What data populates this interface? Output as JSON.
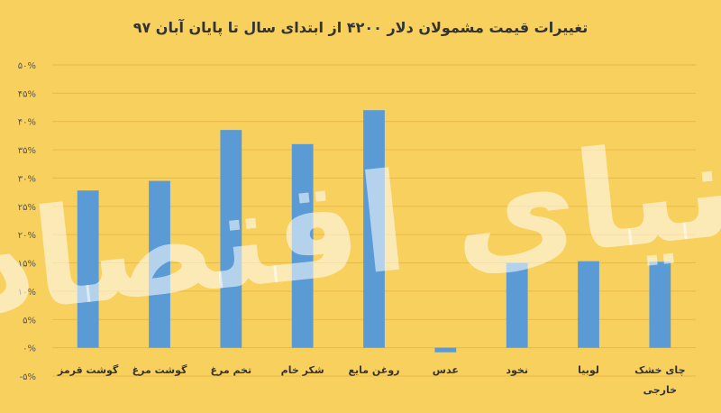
{
  "chart_data": {
    "type": "bar",
    "title": "تغییرات قیمت مشمولان دلار ۴۲۰۰ از ابتدای سال تا پایان آبان ۹۷",
    "xlabel": "",
    "ylabel": "",
    "ylim": [
      -5,
      50
    ],
    "yticks": [
      50,
      45,
      40,
      35,
      30,
      25,
      20,
      15,
      10,
      5,
      0,
      -5
    ],
    "ytick_labels": [
      "۵۰%",
      "۴۵%",
      "۴۰%",
      "۳۵%",
      "۳۰%",
      "۲۵%",
      "۲۰%",
      "۱۵%",
      "۱۰%",
      "۵%",
      "۰%",
      "-۵%"
    ],
    "categories": [
      "گوشت قرمز",
      "گوشت مرغ",
      "تخم مرغ",
      "شکر خام",
      "روغن مایع",
      "عدس",
      "نخود",
      "لوبیا",
      "چای خشک خارجی"
    ],
    "values": [
      27.8,
      29.5,
      38.5,
      36,
      42,
      -0.8,
      15,
      15.3,
      15.2
    ],
    "bar_color": "#5b9bd5",
    "grid": true,
    "watermark": "دنیای اقتصاد"
  }
}
